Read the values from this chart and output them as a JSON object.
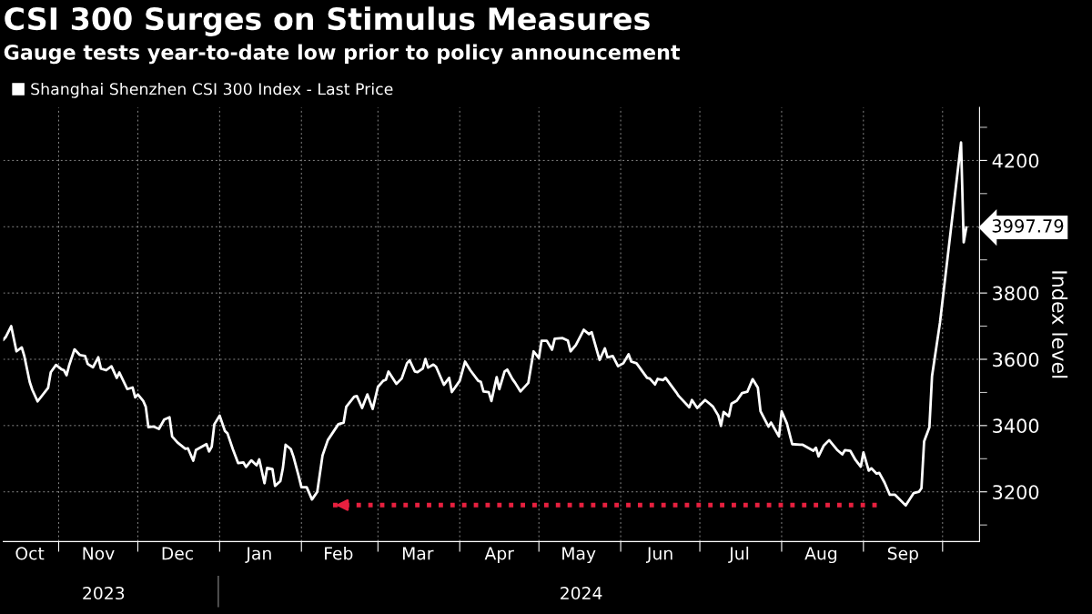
{
  "chart_data": {
    "type": "line",
    "title": "CSI 300 Surges on Stimulus Measures",
    "subtitle": "Gauge tests year-to-date low prior to policy announcement",
    "ylabel": "Index level",
    "x": [
      "2023-10-11",
      "2023-10-12",
      "2023-10-14",
      "2023-10-16",
      "2023-10-18",
      "2023-10-19",
      "2023-10-21",
      "2023-10-22",
      "2023-10-24",
      "2023-10-28",
      "2023-10-29",
      "2023-10-31",
      "2023-11-02",
      "2023-11-03",
      "2023-11-04",
      "2023-11-05",
      "2023-11-07",
      "2023-11-09",
      "2023-11-11",
      "2023-11-12",
      "2023-11-14",
      "2023-11-16",
      "2023-11-17",
      "2023-11-19",
      "2023-11-21",
      "2023-11-23",
      "2023-11-24",
      "2023-11-27",
      "2023-11-29",
      "2023-11-30",
      "2023-12-01",
      "2023-12-03",
      "2023-12-04",
      "2023-12-05",
      "2023-12-07",
      "2023-12-09",
      "2023-12-11",
      "2023-12-13",
      "2023-12-14",
      "2023-12-16",
      "2023-12-19",
      "2023-12-20",
      "2023-12-22",
      "2023-12-23",
      "2023-12-27",
      "2023-12-28",
      "2023-12-29",
      "2023-12-30",
      "2024-01-01",
      "2024-01-03",
      "2024-01-04",
      "2024-01-06",
      "2024-01-08",
      "2024-01-10",
      "2024-01-11",
      "2024-01-13",
      "2024-01-15",
      "2024-01-16",
      "2024-01-18",
      "2024-01-19",
      "2024-01-21",
      "2024-01-22",
      "2024-01-24",
      "2024-01-25",
      "2024-01-26",
      "2024-01-28",
      "2024-01-29",
      "2024-01-31",
      "2024-02-01",
      "2024-02-03",
      "2024-02-05",
      "2024-02-07",
      "2024-02-09",
      "2024-02-11",
      "2024-02-15",
      "2024-02-17",
      "2024-02-18",
      "2024-02-21",
      "2024-02-22",
      "2024-02-24",
      "2024-02-26",
      "2024-02-28",
      "2024-03-01",
      "2024-03-03",
      "2024-03-04",
      "2024-03-05",
      "2024-03-08",
      "2024-03-10",
      "2024-03-12",
      "2024-03-13",
      "2024-03-15",
      "2024-03-16",
      "2024-03-18",
      "2024-03-19",
      "2024-03-20",
      "2024-03-22",
      "2024-03-23",
      "2024-03-26",
      "2024-03-28",
      "2024-03-29",
      "2024-04-01",
      "2024-04-03",
      "2024-04-05",
      "2024-04-08",
      "2024-04-09",
      "2024-04-10",
      "2024-04-12",
      "2024-04-13",
      "2024-04-15",
      "2024-04-16",
      "2024-04-18",
      "2024-04-19",
      "2024-04-21",
      "2024-04-22",
      "2024-04-24",
      "2024-04-27",
      "2024-04-29",
      "2024-05-01",
      "2024-05-02",
      "2024-05-04",
      "2024-05-06",
      "2024-05-07",
      "2024-05-10",
      "2024-05-12",
      "2024-05-13",
      "2024-05-15",
      "2024-05-18",
      "2024-05-20",
      "2024-05-21",
      "2024-05-24",
      "2024-05-26",
      "2024-05-27",
      "2024-05-29",
      "2024-05-31",
      "2024-06-02",
      "2024-06-04",
      "2024-06-05",
      "2024-06-07",
      "2024-06-11",
      "2024-06-12",
      "2024-06-14",
      "2024-06-15",
      "2024-06-17",
      "2024-06-18",
      "2024-06-22",
      "2024-06-23",
      "2024-06-27",
      "2024-06-28",
      "2024-06-30",
      "2024-07-03",
      "2024-07-05",
      "2024-07-06",
      "2024-07-08",
      "2024-07-09",
      "2024-07-10",
      "2024-07-12",
      "2024-07-13",
      "2024-07-15",
      "2024-07-17",
      "2024-07-19",
      "2024-07-21",
      "2024-07-23",
      "2024-07-24",
      "2024-07-27",
      "2024-07-28",
      "2024-07-31",
      "2024-08-01",
      "2024-08-03",
      "2024-08-05",
      "2024-08-08",
      "2024-08-09",
      "2024-08-11",
      "2024-08-13",
      "2024-08-14",
      "2024-08-15",
      "2024-08-17",
      "2024-08-19",
      "2024-08-22",
      "2024-08-24",
      "2024-08-25",
      "2024-08-27",
      "2024-08-29",
      "2024-08-31",
      "2024-09-01",
      "2024-09-03",
      "2024-09-04",
      "2024-09-06",
      "2024-09-07",
      "2024-09-09",
      "2024-09-11",
      "2024-09-13",
      "2024-09-17",
      "2024-09-18",
      "2024-09-20",
      "2024-09-22",
      "2024-09-23",
      "2024-09-24",
      "2024-09-26",
      "2024-09-27",
      "2024-09-30",
      "2024-10-08",
      "2024-10-09",
      "2024-10-10"
    ],
    "series": [
      {
        "name": "Shanghai Shenzhen CSI 300 Index - Last Price",
        "color": "#ffffff",
        "values": [
          3659,
          3668,
          3700,
          3624,
          3636,
          3609,
          3532,
          3508,
          3473,
          3514,
          3561,
          3583,
          3570,
          3567,
          3552,
          3583,
          3630,
          3613,
          3610,
          3586,
          3576,
          3606,
          3572,
          3567,
          3579,
          3544,
          3560,
          3510,
          3515,
          3485,
          3494,
          3475,
          3457,
          3395,
          3397,
          3390,
          3418,
          3425,
          3367,
          3349,
          3330,
          3331,
          3294,
          3326,
          3344,
          3322,
          3336,
          3404,
          3430,
          3384,
          3376,
          3329,
          3287,
          3289,
          3275,
          3295,
          3280,
          3298,
          3226,
          3272,
          3269,
          3218,
          3232,
          3273,
          3342,
          3329,
          3306,
          3246,
          3214,
          3214,
          3177,
          3200,
          3310,
          3356,
          3404,
          3409,
          3457,
          3487,
          3489,
          3453,
          3494,
          3450,
          3517,
          3535,
          3538,
          3563,
          3526,
          3542,
          3588,
          3597,
          3563,
          3561,
          3572,
          3601,
          3575,
          3584,
          3578,
          3523,
          3544,
          3501,
          3535,
          3593,
          3567,
          3535,
          3532,
          3503,
          3501,
          3474,
          3546,
          3510,
          3563,
          3569,
          3540,
          3529,
          3503,
          3529,
          3624,
          3604,
          3656,
          3656,
          3629,
          3662,
          3664,
          3656,
          3624,
          3643,
          3689,
          3676,
          3682,
          3598,
          3633,
          3606,
          3610,
          3579,
          3588,
          3615,
          3593,
          3588,
          3544,
          3542,
          3524,
          3541,
          3537,
          3544,
          3501,
          3489,
          3455,
          3477,
          3453,
          3477,
          3464,
          3457,
          3430,
          3399,
          3441,
          3428,
          3466,
          3475,
          3498,
          3502,
          3540,
          3514,
          3443,
          3397,
          3409,
          3367,
          3443,
          3406,
          3344,
          3342,
          3342,
          3333,
          3324,
          3333,
          3307,
          3340,
          3356,
          3327,
          3313,
          3326,
          3324,
          3296,
          3276,
          3319,
          3264,
          3271,
          3255,
          3257,
          3228,
          3191,
          3191,
          3159,
          3171,
          3196,
          3200,
          3211,
          3352,
          3395,
          3549,
          3710,
          4254,
          3953,
          3997.79
        ]
      },
      {
        "color": "#e8203f",
        "type": "line",
        "line_style": "dotted",
        "x": [
          "2024-02-13",
          "2024-09-07"
        ],
        "values": [
          3160,
          3160
        ]
      }
    ],
    "annotations": [
      {
        "text": "3997.79",
        "x": "2024-10-10",
        "y": 3997.79
      },
      "2023",
      "2024"
    ],
    "xlim": [
      "2023-10-11",
      "2024-10-15"
    ],
    "xticks": [
      {
        "value": "2023-10-21",
        "label": "Oct"
      },
      {
        "value": "2023-11-01",
        "label": null
      },
      {
        "value": "2023-11-16",
        "label": "Nov"
      },
      {
        "value": "2023-12-01",
        "label": null
      },
      {
        "value": "2023-12-16",
        "label": "Dec"
      },
      {
        "value": "2024-01-01",
        "label": null
      },
      {
        "value": "2024-01-16",
        "label": "Jan"
      },
      {
        "value": "2024-02-01",
        "label": null
      },
      {
        "value": "2024-02-15",
        "label": "Feb"
      },
      {
        "value": "2024-03-01",
        "label": null
      },
      {
        "value": "2024-03-16",
        "label": "Mar"
      },
      {
        "value": "2024-04-01",
        "label": null
      },
      {
        "value": "2024-04-16",
        "label": "Apr"
      },
      {
        "value": "2024-05-01",
        "label": null
      },
      {
        "value": "2024-05-16",
        "label": "May"
      },
      {
        "value": "2024-06-01",
        "label": null
      },
      {
        "value": "2024-06-16",
        "label": "Jun"
      },
      {
        "value": "2024-07-01",
        "label": null
      },
      {
        "value": "2024-07-16",
        "label": "Jul"
      },
      {
        "value": "2024-08-01",
        "label": null
      },
      {
        "value": "2024-08-16",
        "label": "Aug"
      },
      {
        "value": "2024-09-01",
        "label": null
      },
      {
        "value": "2024-09-16",
        "label": "Sep"
      },
      {
        "value": "2024-10-01",
        "label": null
      }
    ],
    "ylim": [
      3050,
      4360
    ],
    "yticks": [
      {
        "value": 3100,
        "label": null
      },
      3200,
      {
        "value": 3300,
        "label": null
      },
      3400,
      {
        "value": 3500,
        "label": null
      },
      3600,
      {
        "value": 3700,
        "label": null
      },
      3800,
      {
        "value": 3900,
        "label": null
      },
      {
        "value": 4000,
        "label": null
      },
      {
        "value": 4100,
        "label": null
      },
      4200,
      {
        "value": 4300,
        "label": null
      }
    ],
    "grid": true,
    "legend": "top left",
    "marker": "none",
    "line_style": "solid"
  }
}
